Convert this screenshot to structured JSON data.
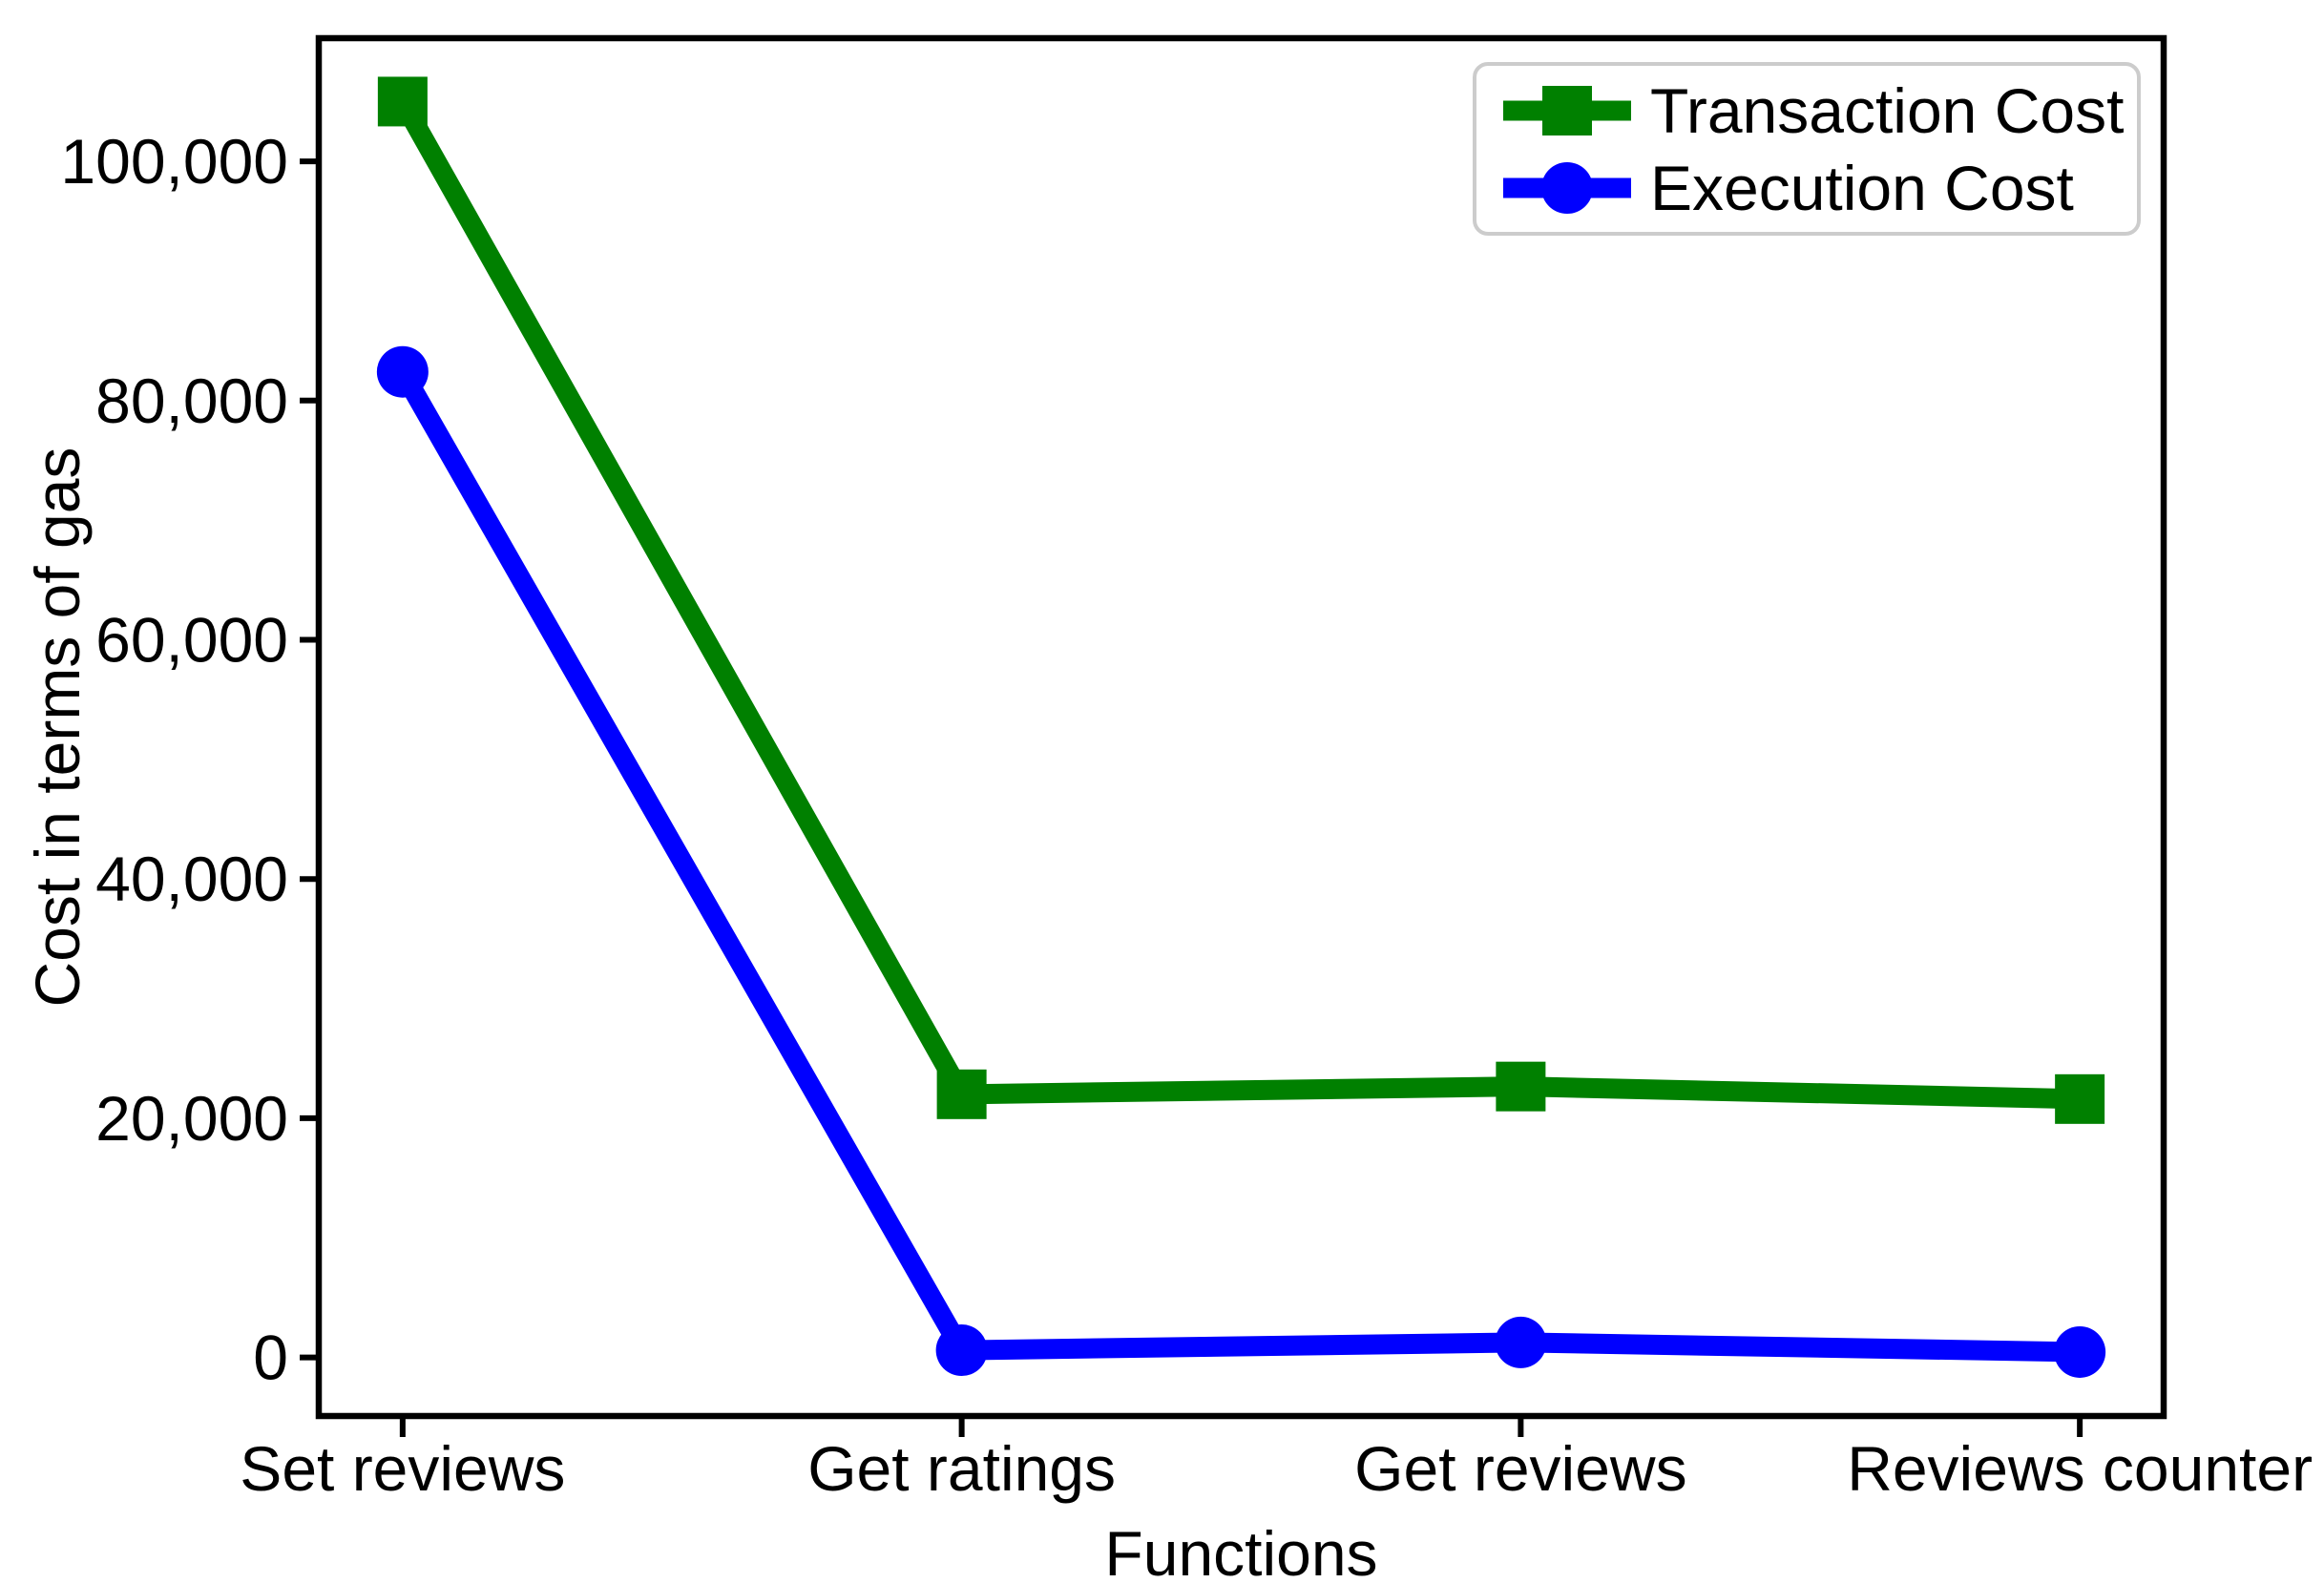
{
  "figure": {
    "background": "#ffffff",
    "axis_color": "#000000",
    "text_color": "#000000"
  },
  "chart_data": {
    "type": "line",
    "title": "",
    "xlabel": "Functions",
    "ylabel": "Cost in terms of gas",
    "categories": [
      "Set reviews",
      "Get ratings",
      "Get reviews",
      "Reviews counter"
    ],
    "series": [
      {
        "name": "Transaction Cost",
        "color": "#008000",
        "marker": "square",
        "values": [
          105000,
          22000,
          22650,
          21600
        ]
      },
      {
        "name": "Execution Cost",
        "color": "#0000ff",
        "marker": "circle",
        "values": [
          82400,
          600,
          1250,
          450
        ]
      }
    ],
    "yticks": [
      0,
      20000,
      40000,
      60000,
      80000,
      100000
    ],
    "ytick_labels": [
      "0",
      "20,000",
      "40,000",
      "60,000",
      "80,000",
      "100,000"
    ],
    "ylim": [
      -4900,
      110300
    ],
    "xlim": [
      -0.15,
      3.15
    ],
    "grid": false,
    "legend": {
      "position": "upper right",
      "border_color": "#cccccc"
    }
  }
}
